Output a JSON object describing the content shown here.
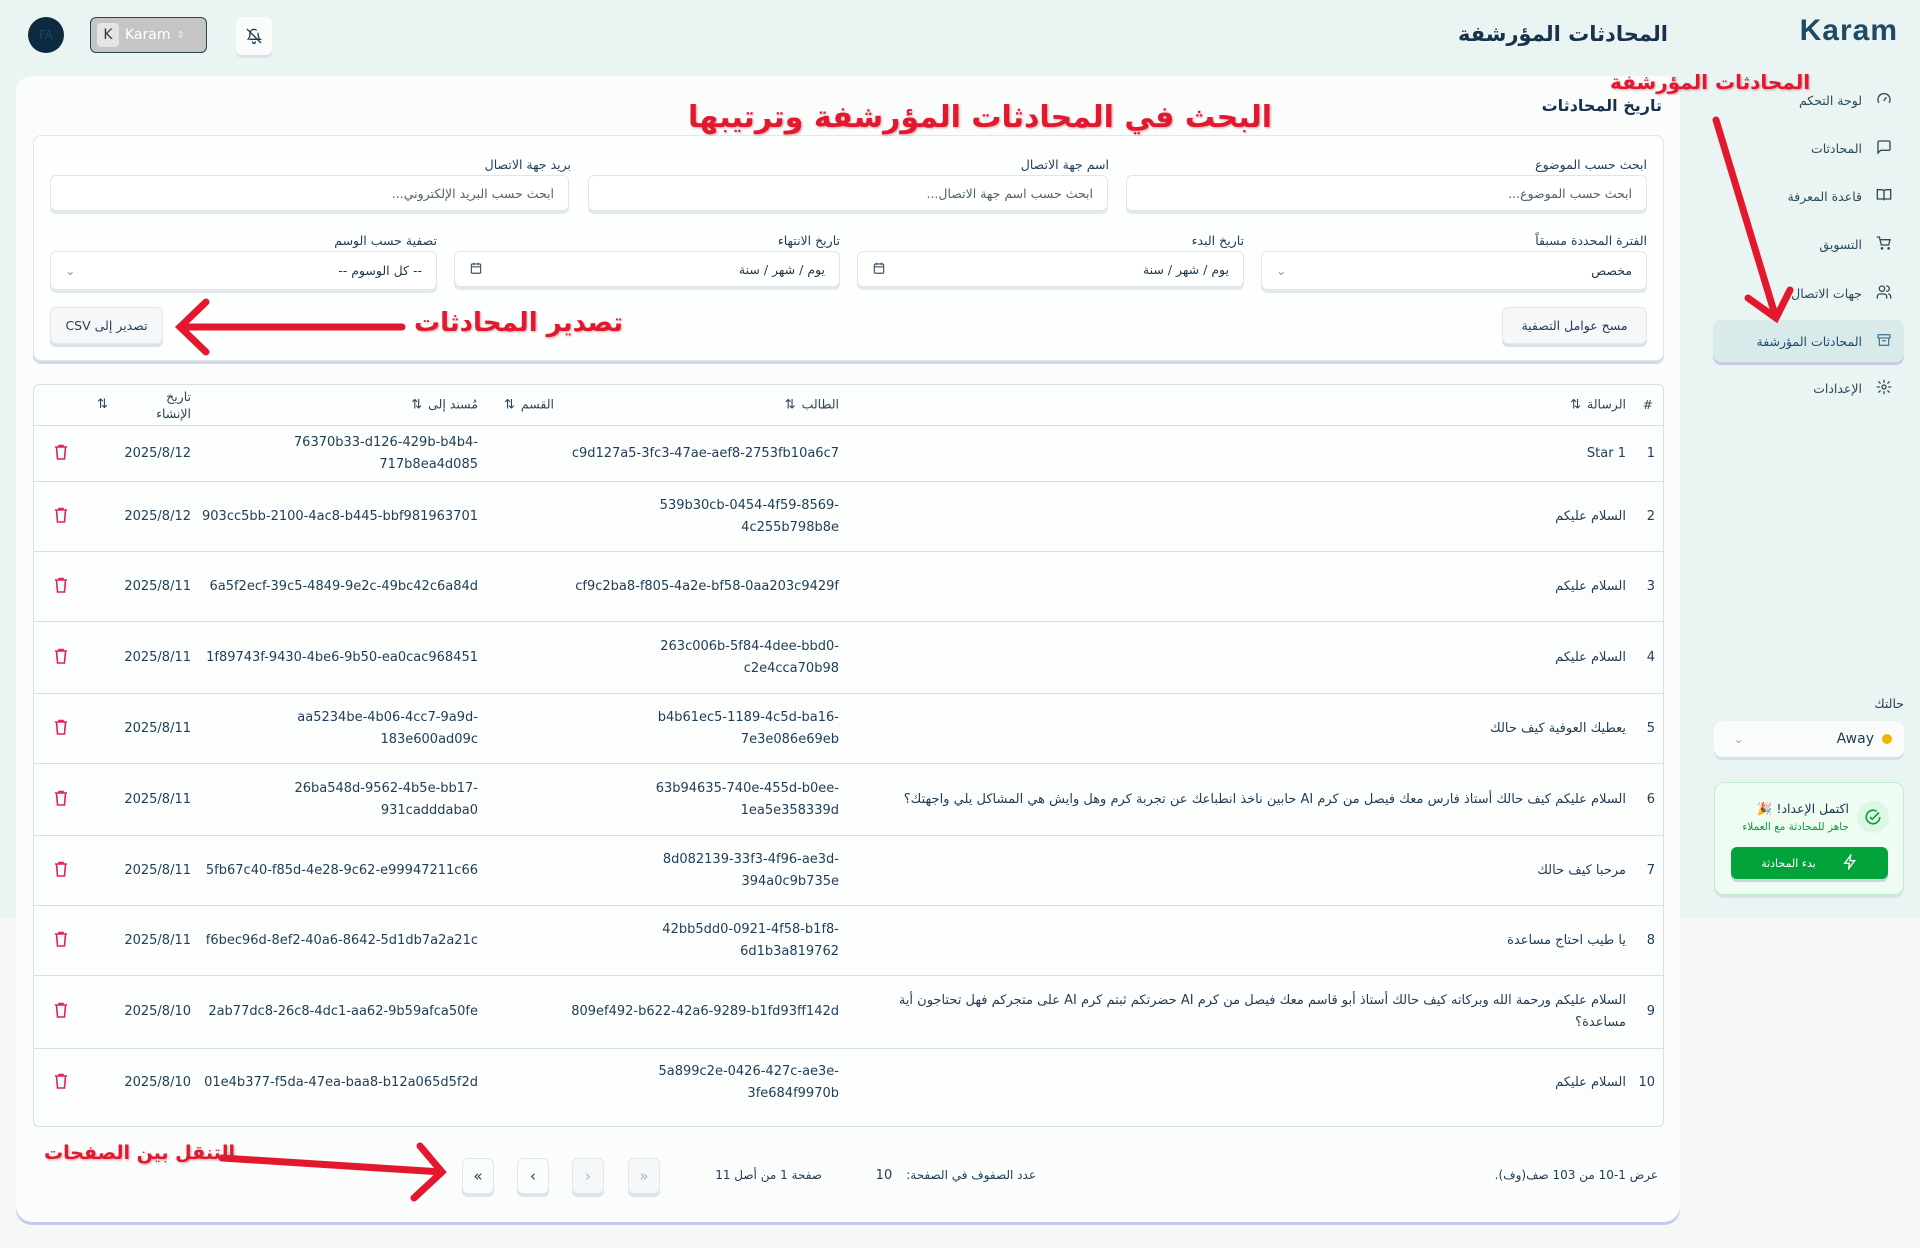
{
  "header": {
    "avatar_initials": "FA",
    "account": {
      "initial": "K",
      "name": "Karam"
    },
    "page_title": "المحادثات المؤرشفة",
    "logo": "Karam"
  },
  "sidebar": {
    "items": [
      {
        "label": "لوحة التحكم",
        "icon": "gauge-icon"
      },
      {
        "label": "المحادثات",
        "icon": "message-square-icon"
      },
      {
        "label": "قاعدة المعرفة",
        "icon": "book-open-icon"
      },
      {
        "label": "التسويق",
        "icon": "shopping-cart-icon"
      },
      {
        "label": "جهات الاتصال",
        "icon": "users-icon"
      },
      {
        "label": "المحادثات المؤرشفة",
        "icon": "archive-icon",
        "active": true
      },
      {
        "label": "الإعدادات",
        "icon": "gear-icon"
      }
    ],
    "status_label": "حالتك",
    "status_value": "Away",
    "status_color": "#f0b400",
    "setup": {
      "title": "اكتمل الإعداد!",
      "emoji": "🎉",
      "subtitle": "جاهز للمحادثة مع العملاء",
      "button": "بدء المحادثة"
    }
  },
  "main": {
    "title": "تاريخ المحادثات",
    "filters": {
      "subject": {
        "label": "ابحث حسب الموضوع",
        "placeholder": "ابحث حسب الموضوع..."
      },
      "contact_name": {
        "label": "اسم جهة الاتصال",
        "placeholder": "ابحث حسب اسم جهة الاتصال..."
      },
      "contact_email": {
        "label": "بريد جهة الاتصال",
        "placeholder": "ابحث حسب البريد الإلكتروني..."
      },
      "preset": {
        "label": "الفترة المحددة مسبقاً",
        "value": "مخصص"
      },
      "start_date": {
        "label": "تاريخ البدء",
        "value": "يوم / شهر / سنة"
      },
      "end_date": {
        "label": "تاريخ الانتهاء",
        "value": "يوم / شهر / سنة"
      },
      "tag": {
        "label": "تصفية حسب الوسم",
        "value": "-- كل الوسوم --"
      },
      "clear_button": "مسح عوامل التصفية",
      "export_button": "تصدير إلى CSV"
    },
    "table": {
      "columns": {
        "index": "#",
        "message": "الرسالة",
        "requester": "الطالب",
        "department": "القسم",
        "assigned": "مُسند إلى",
        "created": "تاريخ الإنشاء"
      },
      "rows": [
        {
          "index": "1",
          "message": "Star 1",
          "requester": "c9d127a5-3fc3-47ae-aef8-2753fb10a6c7",
          "department": "",
          "assigned": "76370b33-d126-429b-b4b4-717b8ea4d085",
          "created": "2025/8/12"
        },
        {
          "index": "2",
          "message": "السلام عليكم",
          "requester": "539b30cb-0454-4f59-8569-4c255b798b8e",
          "department": "",
          "assigned": "903cc5bb-2100-4ac8-b445-bbf981963701",
          "created": "2025/8/12"
        },
        {
          "index": "3",
          "message": "السلام عليكم",
          "requester": "cf9c2ba8-f805-4a2e-bf58-0aa203c9429f",
          "department": "",
          "assigned": "6a5f2ecf-39c5-4849-9e2c-49bc42c6a84d",
          "created": "2025/8/11"
        },
        {
          "index": "4",
          "message": "السلام عليكم",
          "requester": "263c006b-5f84-4dee-bbd0-c2e4cca70b98",
          "department": "",
          "assigned": "1f89743f-9430-4be6-9b50-ea0cac968451",
          "created": "2025/8/11"
        },
        {
          "index": "5",
          "message": "يعطيك العوفية كيف حالك",
          "requester": "b4b61ec5-1189-4c5d-ba16-7e3e086e69eb",
          "department": "",
          "assigned": "aa5234be-4b06-4cc7-9a9d-183e600ad09c",
          "created": "2025/8/11"
        },
        {
          "index": "6",
          "message": "السلام عليكم كيف حالك أستاذ فارس معك فيصل من كرم AI حابين ناخذ انطباعك عن تجربة كرم وهل وايش هي المشاكل يلي واجهتك؟",
          "requester": "63b94635-740e-455d-b0ee-1ea5e358339d",
          "department": "",
          "assigned": "26ba548d-9562-4b5e-bb17-931cadddaba0",
          "created": "2025/8/11"
        },
        {
          "index": "7",
          "message": "مرحبا كيف حالك",
          "requester": "8d082139-33f3-4f96-ae3d-394a0c9b735e",
          "department": "",
          "assigned": "5fb67c40-f85d-4e28-9c62-e99947211c66",
          "created": "2025/8/11"
        },
        {
          "index": "8",
          "message": "يا طيب احتاج مساعدة",
          "requester": "42bb5dd0-0921-4f58-b1f8-6d1b3a819762",
          "department": "",
          "assigned": "f6bec96d-8ef2-40a6-8642-5d1db7a2a21c",
          "created": "2025/8/11"
        },
        {
          "index": "9",
          "message": "السلام عليكم ورحمة الله وبركاته كيف حالك أستاذ أبو قاسم معك فيصل من كرم AI حضرتكم ثبتم كرم AI على متجركم فهل تحتاجون أية مساعدة؟",
          "requester": "809ef492-b622-42a6-9289-b1fd93ff142d",
          "department": "",
          "assigned": "2ab77dc8-26c8-4dc1-aa62-9b59afca50fe",
          "created": "2025/8/10"
        },
        {
          "index": "10",
          "message": "السلام عليكم",
          "requester": "5a899c2e-0426-427c-ae3e-3fe684f9970b",
          "department": "",
          "assigned": "01e4b377-f5da-47ea-baa8-b12a065d5f2d",
          "created": "2025/8/10"
        }
      ]
    },
    "pagination": {
      "summary": "عرض 1-10 من 103 صف(وف).",
      "rows_per_page_label": "عدد الصفوف في الصفحة:",
      "rows_per_page": "10",
      "page_info": "صفحة 1 من أصل 11"
    }
  },
  "annotations": {
    "search": "البحث في المحادثات المؤرشفة وترتيبها",
    "archived": "المحادثات المؤرشفة",
    "export": "تصدير المحادثات",
    "paging": "التنقل بين الصفحات",
    "color": "#e3182e"
  }
}
